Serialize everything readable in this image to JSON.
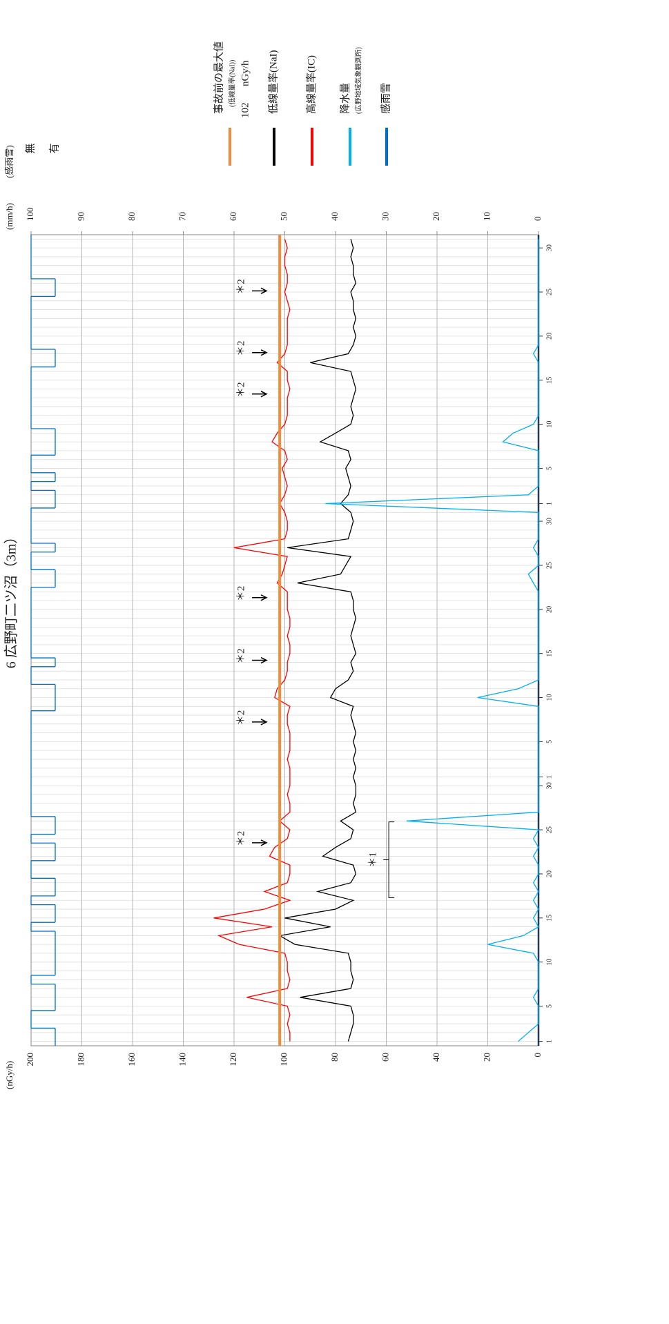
{
  "chart_data": {
    "type": "line",
    "title": "6 広野町二ツ沼（3m）",
    "y_label": "(nGy/h)",
    "y2_label": "(mm/h)",
    "y3_label": "(感雨雪)",
    "x": [
      1,
      2,
      3,
      4,
      5,
      6,
      7,
      8,
      9,
      10,
      11,
      12,
      13,
      14,
      15,
      16,
      17,
      18,
      19,
      20,
      21,
      22,
      23,
      24,
      25,
      26,
      27,
      28,
      29,
      30,
      31,
      32,
      33,
      34,
      35,
      36,
      37,
      38,
      39,
      40,
      41,
      42,
      43,
      44,
      45,
      46,
      47,
      48,
      49,
      50,
      51,
      52,
      53,
      54,
      55,
      56,
      57,
      58,
      59,
      60,
      61,
      62,
      63,
      64,
      65,
      66,
      67,
      68,
      69,
      70,
      71,
      72,
      73,
      74,
      75,
      76,
      77,
      78,
      79,
      80,
      81,
      82,
      83,
      84,
      85,
      86,
      87,
      88,
      89,
      90,
      91,
      92
    ],
    "xlim": [
      0.5,
      92.5
    ],
    "xticks": [
      1,
      5,
      10,
      15,
      20,
      25,
      30,
      {
        "value": 31,
        "label": "1"
      },
      {
        "value": 35,
        "label": "5"
      },
      {
        "value": 40,
        "label": "10"
      },
      {
        "value": 45,
        "label": "15"
      },
      {
        "value": 50,
        "label": "20"
      },
      {
        "value": 55,
        "label": "25"
      },
      {
        "value": 60,
        "label": "30"
      },
      {
        "value": 62,
        "label": "1"
      },
      {
        "value": 66,
        "label": "5"
      },
      {
        "value": 71,
        "label": "10"
      },
      {
        "value": 76,
        "label": "15"
      },
      {
        "value": 81,
        "label": "20"
      },
      {
        "value": 86,
        "label": "25"
      },
      {
        "value": 91,
        "label": "30"
      }
    ],
    "ylim": [
      0,
      200
    ],
    "yticks": [
      0,
      20,
      40,
      60,
      80,
      100,
      120,
      140,
      160,
      180,
      200
    ],
    "y2lim": [
      0,
      100
    ],
    "y2ticks": [
      0,
      10,
      20,
      30,
      40,
      50,
      60,
      70,
      80,
      90,
      100
    ],
    "y3lim": [
      0,
      1
    ],
    "y3ticks": [
      {
        "value": 0,
        "label": "無"
      },
      {
        "value": 1,
        "label": "有"
      }
    ],
    "grid": true,
    "reference_line": {
      "name": "事故前の最大値",
      "subname": "(低線量率(NaI))",
      "value": 102,
      "unit": "nGy/h",
      "color": "#f28c3c"
    },
    "series": [
      {
        "name": "低線量率(NaI)",
        "color": "#000000",
        "values": [
          75,
          74,
          73,
          73,
          74,
          94,
          74,
          73,
          74,
          74,
          75,
          96,
          102,
          82,
          100,
          80,
          73,
          87,
          74,
          72,
          73,
          85,
          80,
          74,
          73,
          78,
          72,
          73,
          72,
          72,
          73,
          72,
          73,
          72,
          73,
          72,
          73,
          74,
          73,
          82,
          80,
          75,
          73,
          74,
          72,
          73,
          74,
          73,
          72,
          73,
          73,
          74,
          95,
          78,
          76,
          74,
          99,
          75,
          74,
          73,
          74,
          78,
          75,
          74,
          75,
          76,
          74,
          75,
          86,
          80,
          74,
          73,
          74,
          73,
          72,
          73,
          74,
          90,
          75,
          73,
          72,
          73,
          72,
          73,
          73,
          74,
          72,
          73,
          73,
          74,
          73,
          74
        ]
      },
      {
        "name": "高線量率(IC)",
        "color": "#ff0000",
        "values": [
          98,
          98,
          99,
          98,
          99,
          115,
          99,
          98,
          99,
          99,
          100,
          118,
          126,
          105,
          128,
          108,
          98,
          108,
          99,
          98,
          98,
          106,
          104,
          99,
          98,
          102,
          98,
          98,
          99,
          98,
          98,
          98,
          99,
          98,
          98,
          98,
          99,
          99,
          98,
          104,
          103,
          100,
          99,
          99,
          98,
          98,
          99,
          98,
          98,
          99,
          99,
          99,
          103,
          101,
          100,
          99,
          120,
          100,
          99,
          99,
          100,
          102,
          100,
          99,
          100,
          101,
          99,
          100,
          105,
          103,
          100,
          99,
          99,
          99,
          98,
          99,
          99,
          103,
          100,
          99,
          99,
          99,
          99,
          98,
          99,
          100,
          99,
          99,
          100,
          100,
          99,
          100
        ]
      },
      {
        "name": "降水量",
        "source": "(広野地域気象観測所)",
        "color": "#00b0f0",
        "axis": "y2",
        "values": [
          4,
          2,
          0,
          0,
          0,
          1,
          0,
          0,
          0,
          0,
          1,
          10,
          3,
          0,
          1,
          0,
          1,
          0,
          1,
          0,
          0,
          1,
          0,
          1,
          0,
          26,
          0,
          0,
          0,
          0,
          0,
          0,
          0,
          0,
          0,
          0,
          0,
          0,
          0,
          12,
          4,
          0,
          0,
          0,
          0,
          0,
          0,
          0,
          0,
          0,
          0,
          0,
          1,
          2,
          0,
          0,
          1,
          0,
          0,
          0,
          0,
          42,
          2,
          0,
          0,
          0,
          0,
          0,
          7,
          5,
          1,
          0,
          0,
          0,
          0,
          0,
          0,
          0,
          1,
          0,
          0,
          0,
          0,
          0,
          0,
          0,
          0,
          0,
          0,
          0,
          0,
          0
        ]
      },
      {
        "name": "感雨雪",
        "color": "#0070c0",
        "axis": "y3",
        "values": [
          1,
          1,
          0,
          0,
          1,
          1,
          1,
          0,
          1,
          1,
          1,
          1,
          1,
          0,
          1,
          1,
          0,
          1,
          1,
          0,
          0,
          1,
          1,
          0,
          1,
          1,
          0,
          0,
          0,
          0,
          0,
          0,
          0,
          0,
          0,
          0,
          0,
          0,
          1,
          1,
          1,
          0,
          0,
          1,
          0,
          0,
          0,
          0,
          0,
          0,
          0,
          0,
          1,
          1,
          0,
          0,
          1,
          0,
          0,
          0,
          0,
          1,
          1,
          0,
          1,
          0,
          0,
          1,
          1,
          1,
          0,
          0,
          0,
          0,
          0,
          0,
          0,
          1,
          1,
          0,
          0,
          0,
          0,
          0,
          0,
          1,
          1,
          0,
          0,
          0,
          0,
          0
        ]
      }
    ],
    "annotations": [
      {
        "text": "＊1",
        "x": 21.6,
        "y": 65
      },
      {
        "text": "＊2",
        "x": 24,
        "y": 117
      },
      {
        "text": "＊2",
        "x": 37.7,
        "y": 117
      },
      {
        "text": "＊2",
        "x": 44.7,
        "y": 117
      },
      {
        "text": "＊2",
        "x": 51.8,
        "y": 117
      },
      {
        "text": "＊2",
        "x": 74.9,
        "y": 117
      },
      {
        "text": "＊2",
        "x": 79.6,
        "y": 117
      },
      {
        "text": "＊2",
        "x": 86.6,
        "y": 117
      }
    ]
  }
}
